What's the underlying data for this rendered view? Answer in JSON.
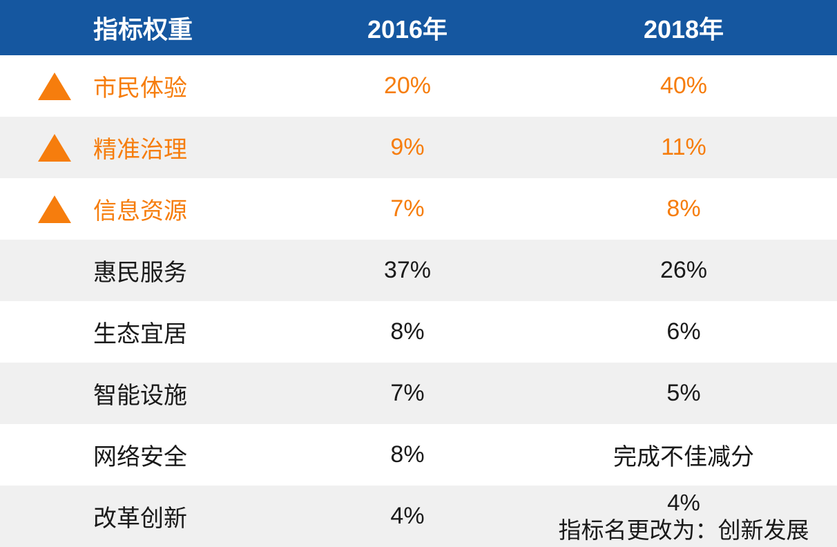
{
  "colors": {
    "header_bg": "#1557A0",
    "header_text": "#FFFFFF",
    "highlight_orange": "#F67D0D",
    "row_bg": "#FFFFFF",
    "row_alt_bg": "#F0F0F0",
    "body_text": "#1A1A1A"
  },
  "header": {
    "indicator": "指标权重",
    "y2016": "2016年",
    "y2018": "2018年"
  },
  "rows": [
    {
      "label": "市民体验",
      "y2016": "20%",
      "y2018": "40%",
      "trend_icon": "up-triangle",
      "highlighted": true
    },
    {
      "label": "精准治理",
      "y2016": "9%",
      "y2018": "11%",
      "trend_icon": "up-triangle",
      "highlighted": true
    },
    {
      "label": "信息资源",
      "y2016": "7%",
      "y2018": "8%",
      "trend_icon": "up-triangle",
      "highlighted": true
    },
    {
      "label": "惠民服务",
      "y2016": "37%",
      "y2018": "26%",
      "highlighted": false
    },
    {
      "label": "生态宜居",
      "y2016": "8%",
      "y2018": "6%",
      "highlighted": false
    },
    {
      "label": "智能设施",
      "y2016": "7%",
      "y2018": "5%",
      "highlighted": false
    },
    {
      "label": "网络安全",
      "y2016": "8%",
      "y2018": "完成不佳减分",
      "highlighted": false
    },
    {
      "label": "改革创新",
      "y2016": "4%",
      "y2018": "4%",
      "note": "指标名更改为：创新发展",
      "highlighted": false
    }
  ],
  "chart_data": {
    "type": "table",
    "title": "指标权重",
    "columns": [
      "指标权重",
      "2016年",
      "2018年"
    ],
    "rows": [
      [
        "市民体验",
        "20%",
        "40%"
      ],
      [
        "精准治理",
        "9%",
        "11%"
      ],
      [
        "信息资源",
        "7%",
        "8%"
      ],
      [
        "惠民服务",
        "37%",
        "26%"
      ],
      [
        "生态宜居",
        "8%",
        "6%"
      ],
      [
        "智能设施",
        "7%",
        "5%"
      ],
      [
        "网络安全",
        "8%",
        "完成不佳减分"
      ],
      [
        "改革创新",
        "4%",
        "4% 指标名更改为：创新发展"
      ]
    ],
    "highlighted_rows": [
      "市民体验",
      "精准治理",
      "信息资源"
    ],
    "highlight_marker": "orange up-triangle"
  }
}
